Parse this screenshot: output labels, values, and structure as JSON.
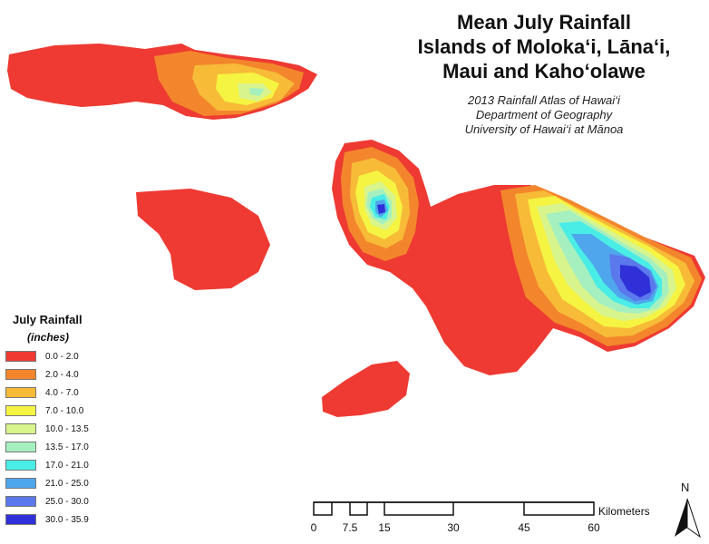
{
  "title": {
    "line1": "Mean July Rainfall",
    "line2": "Islands of Moloka‘i, Lāna‘i,",
    "line3": "Maui and Kaho‘olawe"
  },
  "subtitle": {
    "line1": "2013 Rainfall Atlas of Hawai‘i",
    "line2": "Department of Geography",
    "line3": "University of Hawai‘i at Mānoa"
  },
  "legend": {
    "title": "July Rainfall",
    "unit": "(inches)",
    "items": [
      {
        "label": "0.0 - 2.0",
        "color": "#ee3a32"
      },
      {
        "label": "2.0 - 4.0",
        "color": "#f3862c"
      },
      {
        "label": "4.0 - 7.0",
        "color": "#f7bb38"
      },
      {
        "label": "7.0 - 10.0",
        "color": "#f6f442"
      },
      {
        "label": "10.0 - 13.5",
        "color": "#d8f48c"
      },
      {
        "label": "13.5 - 17.0",
        "color": "#a6f0c0"
      },
      {
        "label": "17.0 - 21.0",
        "color": "#49ede6"
      },
      {
        "label": "21.0 - 25.0",
        "color": "#4fa6ec"
      },
      {
        "label": "25.0 - 30.0",
        "color": "#5b78ec"
      },
      {
        "label": "30.0 - 35.9",
        "color": "#3030d8"
      }
    ]
  },
  "scale_bar": {
    "unit": "Kilometers",
    "ticks": [
      "0",
      "7.5",
      "15",
      "30",
      "45",
      "60"
    ]
  },
  "north_arrow": {
    "label": "N"
  }
}
